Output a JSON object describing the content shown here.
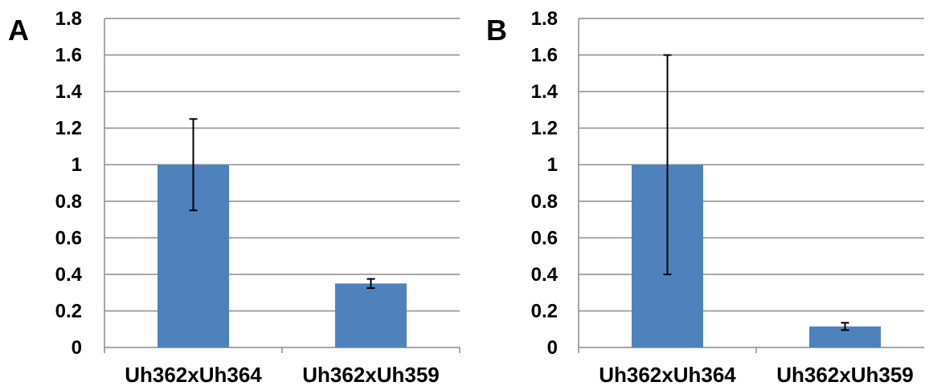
{
  "chart_data": [
    {
      "type": "bar",
      "panel": "A",
      "categories": [
        "Uh362xUh364",
        "Uh362xUh359"
      ],
      "values": [
        1.0,
        0.35
      ],
      "error": [
        0.25,
        0.025
      ],
      "ylim": [
        0,
        1.8
      ],
      "yticks": [
        "0",
        "0.2",
        "0.4",
        "0.6",
        "0.8",
        "1",
        "1.2",
        "1.4",
        "1.6",
        "1.8"
      ],
      "grid": true,
      "bar_color": "#4f81bd"
    },
    {
      "type": "bar",
      "panel": "B",
      "categories": [
        "Uh362xUh364",
        "Uh362xUh359"
      ],
      "values": [
        1.0,
        0.115
      ],
      "error": [
        0.6,
        0.02
      ],
      "ylim": [
        0,
        1.8
      ],
      "yticks": [
        "0",
        "0.2",
        "0.4",
        "0.6",
        "0.8",
        "1",
        "1.2",
        "1.4",
        "1.6",
        "1.8"
      ],
      "grid": true,
      "bar_color": "#4f81bd"
    }
  ]
}
